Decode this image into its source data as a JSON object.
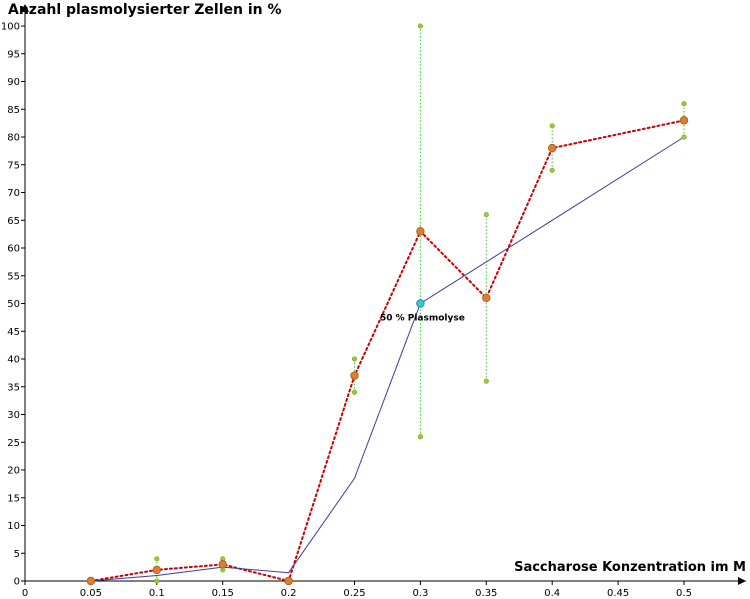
{
  "chart_data": {
    "type": "line",
    "title": "",
    "ylabel": "Anzahl plasmolysierter Zellen in %",
    "xlabel": "Saccharose Konzentration im M",
    "xlim": [
      0,
      0.55
    ],
    "ylim": [
      0,
      100
    ],
    "x_ticks": [
      "0",
      "0.05",
      "0.1",
      "0.15",
      "0.2",
      "0.25",
      "0.3",
      "0.35",
      "0.4",
      "0.45",
      "0.5"
    ],
    "y_ticks": [
      "0",
      "5",
      "10",
      "15",
      "20",
      "25",
      "30",
      "35",
      "40",
      "45",
      "50",
      "55",
      "60",
      "65",
      "70",
      "75",
      "80",
      "85",
      "90",
      "95",
      "100"
    ],
    "series": [
      {
        "style": "dotted-red",
        "color": "#cc0000",
        "marker_color": "#e07a3c",
        "points": [
          {
            "x": 0.05,
            "y": 0
          },
          {
            "x": 0.1,
            "y": 2
          },
          {
            "x": 0.15,
            "y": 3
          },
          {
            "x": 0.2,
            "y": 0
          },
          {
            "x": 0.25,
            "y": 37
          },
          {
            "x": 0.3,
            "y": 63
          },
          {
            "x": 0.35,
            "y": 51
          },
          {
            "x": 0.4,
            "y": 78
          },
          {
            "x": 0.5,
            "y": 83
          }
        ]
      },
      {
        "style": "solid-blue",
        "color": "#3a3aa0",
        "points": [
          {
            "x": 0.05,
            "y": 0
          },
          {
            "x": 0.1,
            "y": 1
          },
          {
            "x": 0.15,
            "y": 2.5
          },
          {
            "x": 0.2,
            "y": 1.5
          },
          {
            "x": 0.25,
            "y": 18.5
          },
          {
            "x": 0.3,
            "y": 50
          },
          {
            "x": 0.4,
            "y": 65
          },
          {
            "x": 0.5,
            "y": 80
          }
        ]
      }
    ],
    "ranges": [
      {
        "x": 0.1,
        "low": 0,
        "high": 4
      },
      {
        "x": 0.15,
        "low": 2,
        "high": 4
      },
      {
        "x": 0.25,
        "low": 34,
        "high": 40
      },
      {
        "x": 0.3,
        "low": 26,
        "high": 100
      },
      {
        "x": 0.35,
        "low": 36,
        "high": 66
      },
      {
        "x": 0.4,
        "low": 74,
        "high": 82
      },
      {
        "x": 0.5,
        "low": 80,
        "high": 86
      }
    ],
    "range_color": "#33cc33",
    "range_marker_color": "#99cc33",
    "highlight_point": {
      "x": 0.3,
      "y": 50,
      "label": "50 % Plasmolyse",
      "color": "#33cccc"
    }
  }
}
